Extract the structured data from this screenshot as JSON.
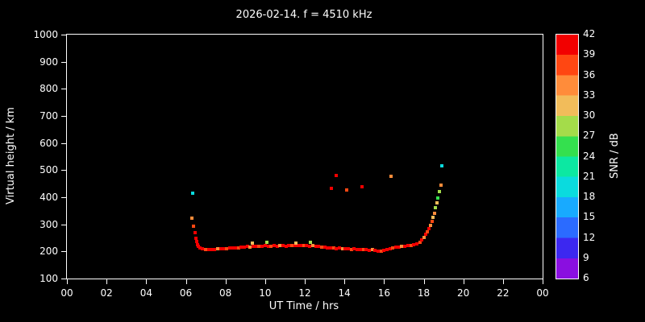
{
  "colors": {
    "background": "#000000",
    "foreground": "#ffffff"
  },
  "chart_data": {
    "type": "scatter",
    "title": "2026-02-14. f = 4510 kHz",
    "xlabel": "UT Time / hrs",
    "ylabel": "Virtual height / km",
    "xlim": [
      0,
      24
    ],
    "ylim": [
      100,
      1000
    ],
    "grid": false,
    "x_ticks": [
      {
        "value": 0,
        "label": "00"
      },
      {
        "value": 2,
        "label": "02"
      },
      {
        "value": 4,
        "label": "04"
      },
      {
        "value": 6,
        "label": "06"
      },
      {
        "value": 8,
        "label": "08"
      },
      {
        "value": 10,
        "label": "10"
      },
      {
        "value": 12,
        "label": "12"
      },
      {
        "value": 14,
        "label": "14"
      },
      {
        "value": 16,
        "label": "16"
      },
      {
        "value": 18,
        "label": "18"
      },
      {
        "value": 20,
        "label": "20"
      },
      {
        "value": 22,
        "label": "22"
      },
      {
        "value": 24,
        "label": "00"
      }
    ],
    "y_ticks": [
      100,
      200,
      300,
      400,
      500,
      600,
      700,
      800,
      900,
      1000
    ],
    "colorbar": {
      "label": "SNR / dB",
      "min": 6,
      "max": 42,
      "ticks": [
        6,
        9,
        12,
        15,
        18,
        21,
        24,
        27,
        30,
        33,
        36,
        39,
        42
      ],
      "segments": [
        {
          "from": 6,
          "to": 9,
          "color": "#8a0fe0"
        },
        {
          "from": 9,
          "to": 12,
          "color": "#3c28f0"
        },
        {
          "from": 12,
          "to": 15,
          "color": "#2b6bff"
        },
        {
          "from": 15,
          "to": 18,
          "color": "#18aaff"
        },
        {
          "from": 18,
          "to": 21,
          "color": "#0adbde"
        },
        {
          "from": 21,
          "to": 24,
          "color": "#0ce8a2"
        },
        {
          "from": 24,
          "to": 27,
          "color": "#34e04e"
        },
        {
          "from": 27,
          "to": 30,
          "color": "#a4dc4a"
        },
        {
          "from": 30,
          "to": 33,
          "color": "#f2bc5a"
        },
        {
          "from": 33,
          "to": 36,
          "color": "#ff8c3a"
        },
        {
          "from": 36,
          "to": 39,
          "color": "#ff4712"
        },
        {
          "from": 39,
          "to": 42,
          "color": "#f20000"
        }
      ]
    },
    "points_format": [
      "time_hrs",
      "virtual_height_km",
      "snr_db"
    ],
    "points": [
      [
        6.3,
        322,
        34
      ],
      [
        6.35,
        415,
        19
      ],
      [
        6.4,
        292,
        37
      ],
      [
        6.45,
        268,
        40
      ],
      [
        6.5,
        248,
        40
      ],
      [
        6.55,
        236,
        40
      ],
      [
        6.6,
        226,
        40
      ],
      [
        6.65,
        218,
        40
      ],
      [
        6.7,
        212,
        40
      ],
      [
        6.85,
        209,
        40
      ],
      [
        7.0,
        208,
        37
      ],
      [
        7.15,
        207,
        40
      ],
      [
        7.3,
        208,
        40
      ],
      [
        7.45,
        207,
        40
      ],
      [
        7.6,
        209,
        34
      ],
      [
        7.75,
        210,
        40
      ],
      [
        7.9,
        211,
        40
      ],
      [
        8.05,
        210,
        37
      ],
      [
        8.2,
        212,
        40
      ],
      [
        8.35,
        213,
        40
      ],
      [
        8.5,
        212,
        40
      ],
      [
        8.65,
        214,
        37
      ],
      [
        8.8,
        215,
        40
      ],
      [
        8.95,
        216,
        40
      ],
      [
        9.1,
        218,
        40
      ],
      [
        9.25,
        217,
        34
      ],
      [
        9.4,
        219,
        40
      ],
      [
        9.55,
        220,
        40
      ],
      [
        9.7,
        218,
        37
      ],
      [
        9.85,
        219,
        40
      ],
      [
        10.0,
        221,
        40
      ],
      [
        10.15,
        220,
        40
      ],
      [
        10.3,
        219,
        37
      ],
      [
        10.45,
        221,
        40
      ],
      [
        10.6,
        220,
        40
      ],
      [
        10.75,
        222,
        34
      ],
      [
        10.9,
        221,
        40
      ],
      [
        11.05,
        220,
        40
      ],
      [
        11.2,
        222,
        40
      ],
      [
        11.35,
        221,
        37
      ],
      [
        11.5,
        223,
        40
      ],
      [
        11.65,
        222,
        40
      ],
      [
        11.8,
        221,
        40
      ],
      [
        11.95,
        223,
        37
      ],
      [
        12.1,
        222,
        40
      ],
      [
        12.25,
        220,
        40
      ],
      [
        12.4,
        221,
        34
      ],
      [
        12.55,
        219,
        40
      ],
      [
        12.7,
        218,
        40
      ],
      [
        12.85,
        217,
        37
      ],
      [
        13.0,
        215,
        40
      ],
      [
        13.15,
        214,
        40
      ],
      [
        13.3,
        213,
        40
      ],
      [
        13.45,
        212,
        37
      ],
      [
        13.6,
        211,
        40
      ],
      [
        13.75,
        212,
        40
      ],
      [
        13.9,
        210,
        34
      ],
      [
        14.05,
        209,
        40
      ],
      [
        14.2,
        210,
        40
      ],
      [
        14.35,
        208,
        37
      ],
      [
        14.5,
        209,
        40
      ],
      [
        14.65,
        207,
        40
      ],
      [
        14.8,
        208,
        40
      ],
      [
        14.95,
        206,
        37
      ],
      [
        15.1,
        207,
        40
      ],
      [
        15.25,
        205,
        40
      ],
      [
        15.4,
        206,
        34
      ],
      [
        15.55,
        204,
        40
      ],
      [
        15.7,
        202,
        40
      ],
      [
        15.85,
        200,
        37
      ],
      [
        16.0,
        203,
        40
      ],
      [
        16.15,
        207,
        40
      ],
      [
        16.3,
        210,
        40
      ],
      [
        16.45,
        213,
        37
      ],
      [
        16.6,
        215,
        40
      ],
      [
        16.75,
        216,
        40
      ],
      [
        16.9,
        218,
        34
      ],
      [
        17.05,
        219,
        40
      ],
      [
        17.2,
        221,
        40
      ],
      [
        17.35,
        223,
        37
      ],
      [
        17.5,
        226,
        40
      ],
      [
        9.35,
        231,
        31
      ],
      [
        10.1,
        234,
        28
      ],
      [
        11.55,
        232,
        31
      ],
      [
        12.3,
        235,
        28
      ],
      [
        13.35,
        432,
        40
      ],
      [
        13.6,
        480,
        40
      ],
      [
        14.1,
        427,
        37
      ],
      [
        14.9,
        440,
        40
      ],
      [
        16.35,
        478,
        34
      ],
      [
        17.65,
        228,
        40
      ],
      [
        17.8,
        235,
        37
      ],
      [
        17.9,
        243,
        40
      ],
      [
        18.0,
        252,
        34
      ],
      [
        18.1,
        262,
        40
      ],
      [
        18.2,
        272,
        37
      ],
      [
        18.28,
        284,
        40
      ],
      [
        18.35,
        297,
        34
      ],
      [
        18.42,
        312,
        37
      ],
      [
        18.48,
        326,
        31
      ],
      [
        18.54,
        342,
        34
      ],
      [
        18.6,
        360,
        28
      ],
      [
        18.66,
        378,
        31
      ],
      [
        18.72,
        398,
        25
      ],
      [
        18.8,
        420,
        28
      ],
      [
        18.88,
        446,
        34
      ],
      [
        18.92,
        515,
        19
      ]
    ]
  }
}
